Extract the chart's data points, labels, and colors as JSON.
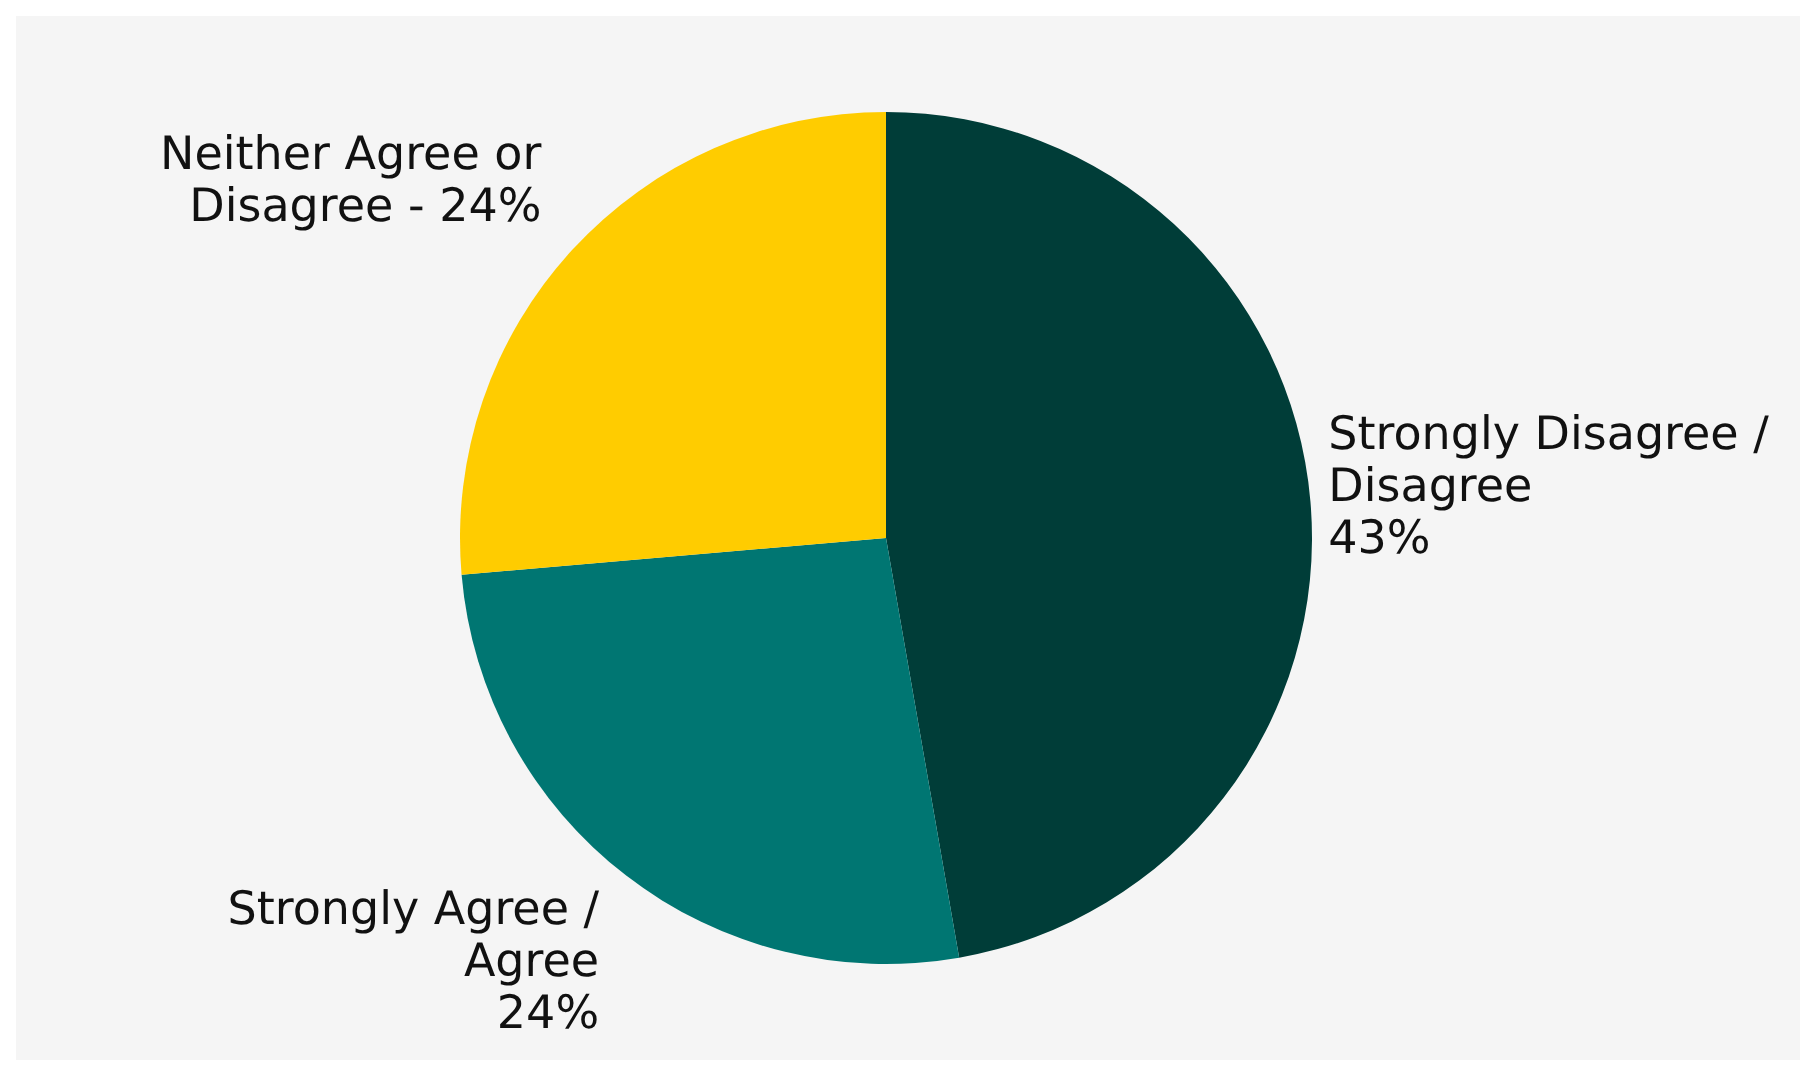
{
  "chart_data": {
    "type": "pie",
    "categories": [
      "Strongly Disagree / Disagree",
      "Strongly Agree / Agree",
      "Neither Agree or Disagree -"
    ],
    "values": [
      43,
      24,
      24
    ],
    "colors": [
      "#003d38",
      "#007672",
      "#ffcc00"
    ],
    "value_labels": [
      "43%",
      "24%",
      "24%"
    ],
    "legend": false
  }
}
